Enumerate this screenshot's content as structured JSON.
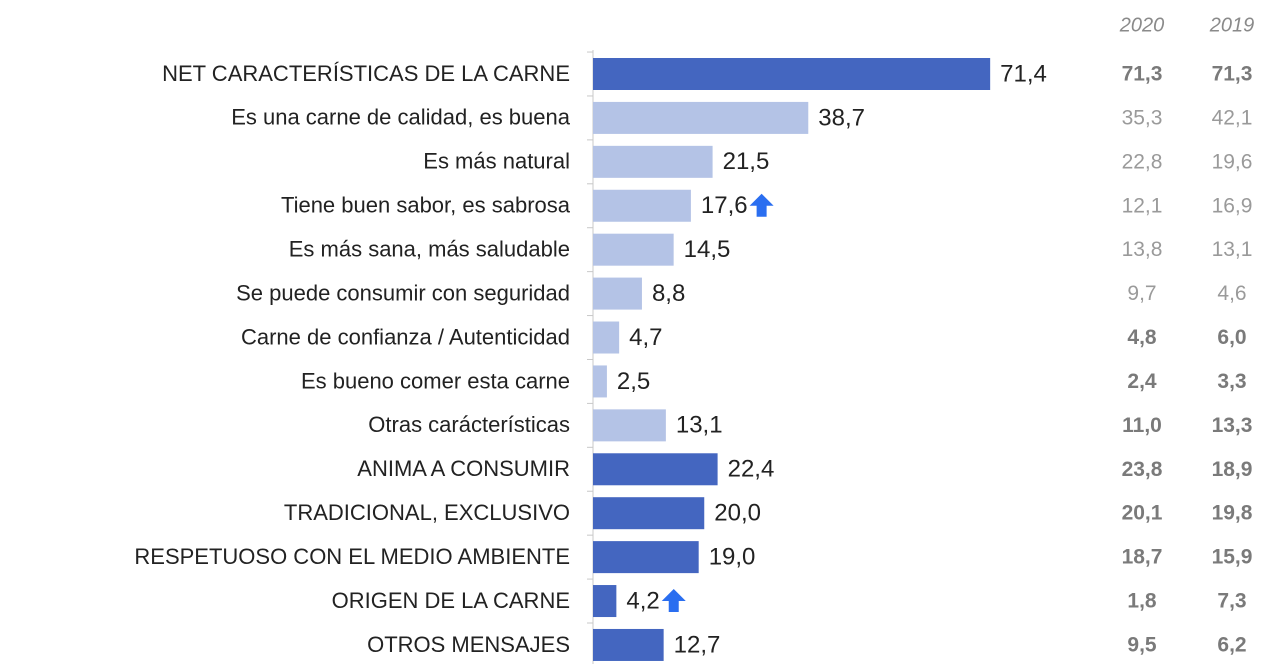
{
  "chart_data": {
    "type": "bar",
    "orientation": "horizontal",
    "categories": [
      "NET CARACTERÍSTICAS DE LA CARNE",
      "Es una carne de calidad, es buena",
      "Es más natural",
      "Tiene buen sabor, es sabrosa",
      "Es más sana, más saludable",
      "Se puede consumir con seguridad",
      "Carne de confianza / Autenticidad",
      "Es bueno comer esta carne",
      "Otras carácterísticas",
      "ANIMA A CONSUMIR",
      "TRADICIONAL, EXCLUSIVO",
      "RESPETUOSO CON EL MEDIO AMBIENTE",
      "ORIGEN DE LA CARNE",
      "OTROS MENSAJES"
    ],
    "values": [
      71.4,
      38.7,
      21.5,
      17.6,
      14.5,
      8.8,
      4.7,
      2.5,
      13.1,
      22.4,
      20.0,
      19.0,
      4.2,
      12.7
    ],
    "value_labels": [
      "71,4",
      "38,7",
      "21,5",
      "17,6",
      "14,5",
      "8,8",
      "4,7",
      "2,5",
      "13,1",
      "22,4",
      "20,0",
      "19,0",
      "4,2",
      "12,7"
    ],
    "colors": [
      "#4466c0",
      "#b4c3e6",
      "#b4c3e6",
      "#b4c3e6",
      "#b4c3e6",
      "#b4c3e6",
      "#b4c3e6",
      "#b4c3e6",
      "#b4c3e6",
      "#4466c0",
      "#4466c0",
      "#4466c0",
      "#4466c0",
      "#4466c0"
    ],
    "up_arrow": [
      false,
      false,
      false,
      true,
      false,
      false,
      false,
      false,
      false,
      false,
      false,
      false,
      true,
      false
    ],
    "arrow_color": "#2a6ef0",
    "xlim": [
      0,
      80
    ],
    "columns": [
      {
        "name": "2020",
        "values": [
          71.3,
          35.3,
          22.8,
          12.1,
          13.8,
          9.7,
          4.8,
          2.4,
          11.0,
          23.8,
          20.1,
          18.7,
          1.8,
          9.5
        ],
        "value_labels": [
          "71,3",
          "35,3",
          "22,8",
          "12,1",
          "13,8",
          "9,7",
          "4,8",
          "2,4",
          "11,0",
          "23,8",
          "20,1",
          "18,7",
          "1,8",
          "9,5"
        ]
      },
      {
        "name": "2019",
        "values": [
          71.3,
          42.1,
          19.6,
          16.9,
          13.1,
          4.6,
          6.0,
          3.3,
          13.3,
          18.9,
          19.8,
          15.9,
          7.3,
          6.2
        ],
        "value_labels": [
          "71,3",
          "42,1",
          "19,6",
          "16,9",
          "13,1",
          "4,6",
          "6,0",
          "3,3",
          "13,3",
          "18,9",
          "19,8",
          "15,9",
          "7,3",
          "6,2"
        ]
      }
    ],
    "column_bold": [
      true,
      false,
      false,
      false,
      false,
      false,
      true,
      true,
      true,
      true,
      true,
      true,
      true,
      true
    ],
    "column_colors": {
      "bold": "#7a7a7a",
      "normal": "#9a9a9a"
    }
  }
}
